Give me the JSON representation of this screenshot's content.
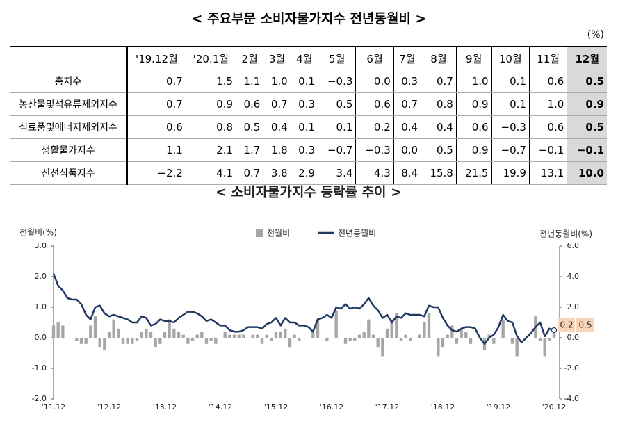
{
  "title": "< 주요부문 소비자물가지수 전년동월비 >",
  "unit": "(%)",
  "table": {
    "header": [
      "'19.12월",
      "'20.1월",
      "2월",
      "3월",
      "4월",
      "5월",
      "6월",
      "7월",
      "8월",
      "9월",
      "10월",
      "11월",
      "12월"
    ],
    "rows": [
      {
        "label": "총지수",
        "values": [
          "0.7",
          "1.5",
          "1.1",
          "1.0",
          "0.1",
          "−0.3",
          "0.0",
          "0.3",
          "0.7",
          "1.0",
          "0.1",
          "0.6",
          "0.5"
        ]
      },
      {
        "label": "농산물및석유류제외지수",
        "values": [
          "0.7",
          "0.9",
          "0.6",
          "0.7",
          "0.3",
          "0.5",
          "0.6",
          "0.7",
          "0.8",
          "0.9",
          "0.1",
          "1.0",
          "0.9"
        ]
      },
      {
        "label": "식료품및에너지제외지수",
        "values": [
          "0.6",
          "0.8",
          "0.5",
          "0.4",
          "0.1",
          "0.1",
          "0.2",
          "0.4",
          "0.4",
          "0.6",
          "−0.3",
          "0.6",
          "0.5"
        ]
      },
      {
        "label": "생활물가지수",
        "values": [
          "1.1",
          "2.1",
          "1.7",
          "1.8",
          "0.3",
          "−0.7",
          "−0.3",
          "0.0",
          "0.5",
          "0.9",
          "−0.7",
          "−0.1",
          "−0.1"
        ]
      },
      {
        "label": "신선식품지수",
        "values": [
          "−2.2",
          "4.1",
          "0.7",
          "3.8",
          "2.9",
          "3.4",
          "4.3",
          "8.4",
          "15.8",
          "21.5",
          "19.9",
          "13.1",
          "10.0"
        ]
      }
    ]
  },
  "chart_data": {
    "type": "bar-line",
    "title": "< 소비자물가지수 등락률 추이 >",
    "y_label": "전월비(%)",
    "y2_label": "전년동월비(%)",
    "categories": [
      "'11.12",
      null,
      null,
      null,
      null,
      null,
      null,
      null,
      null,
      null,
      null,
      null,
      "'12.12",
      null,
      null,
      null,
      null,
      null,
      null,
      null,
      null,
      null,
      null,
      null,
      "'13.12",
      null,
      null,
      null,
      null,
      null,
      null,
      null,
      null,
      null,
      null,
      null,
      "'14.12",
      null,
      null,
      null,
      null,
      null,
      null,
      null,
      null,
      null,
      null,
      null,
      "'15.12",
      null,
      null,
      null,
      null,
      null,
      null,
      null,
      null,
      null,
      null,
      null,
      "'16.12",
      null,
      null,
      null,
      null,
      null,
      null,
      null,
      null,
      null,
      null,
      null,
      "'17.12",
      null,
      null,
      null,
      null,
      null,
      null,
      null,
      null,
      null,
      null,
      null,
      "'18.12",
      null,
      null,
      null,
      null,
      null,
      null,
      null,
      null,
      null,
      null,
      null,
      "'19.12",
      null,
      null,
      null,
      null,
      null,
      null,
      null,
      null,
      null,
      null,
      null,
      "'20.12"
    ],
    "series": [
      {
        "name": "전월비",
        "color": "#a6a6a6",
        "kind": "bar",
        "values": [
          0.4,
          0.5,
          0.4,
          0.0,
          0.0,
          -0.1,
          -0.2,
          -0.2,
          0.4,
          0.7,
          -0.3,
          -0.4,
          0.2,
          0.6,
          0.3,
          -0.2,
          -0.2,
          -0.2,
          -0.1,
          0.2,
          0.3,
          0.2,
          -0.3,
          -0.2,
          0.2,
          0.6,
          0.3,
          0.2,
          0.1,
          -0.2,
          -0.1,
          0.1,
          0.2,
          -0.2,
          -0.1,
          -0.2,
          0.0,
          0.2,
          0.1,
          0.1,
          0.1,
          0.1,
          0.0,
          0.1,
          0.1,
          -0.2,
          0.1,
          -0.1,
          0.2,
          0.2,
          0.3,
          -0.3,
          0.1,
          -0.1,
          0.0,
          0.0,
          0.2,
          0.6,
          0.0,
          -0.1,
          0.0,
          0.9,
          0.0,
          -0.2,
          -0.1,
          -0.1,
          0.1,
          0.2,
          0.6,
          0.1,
          -0.3,
          -0.6,
          0.3,
          0.6,
          0.8,
          -0.1,
          0.1,
          -0.1,
          0.0,
          0.1,
          0.5,
          0.8,
          0.0,
          -0.6,
          -0.3,
          0.1,
          0.4,
          -0.2,
          0.3,
          0.2,
          -0.2,
          0.0,
          0.0,
          -0.4,
          0.1,
          -0.2,
          0.0,
          0.6,
          0.0,
          -0.2,
          -0.6,
          0.0,
          0.0,
          0.0,
          0.7,
          -0.1,
          -0.6,
          -0.1,
          0.2
        ]
      },
      {
        "name": "전년동월비",
        "color": "#1f3864",
        "kind": "line",
        "axis": "y2",
        "values": [
          4.2,
          3.4,
          3.1,
          2.6,
          2.5,
          2.5,
          2.2,
          1.5,
          1.2,
          2.0,
          2.1,
          1.6,
          1.4,
          1.5,
          1.4,
          1.3,
          1.2,
          1.0,
          1.0,
          1.4,
          1.3,
          0.8,
          0.9,
          1.2,
          1.1,
          1.1,
          1.0,
          1.3,
          1.5,
          1.7,
          1.7,
          1.6,
          1.4,
          1.1,
          1.2,
          1.0,
          0.8,
          0.8,
          0.5,
          0.4,
          0.4,
          0.5,
          0.7,
          0.7,
          0.7,
          0.6,
          0.9,
          1.0,
          1.3,
          0.8,
          1.3,
          1.0,
          1.0,
          0.8,
          0.8,
          0.7,
          0.4,
          1.2,
          1.3,
          1.5,
          1.3,
          2.0,
          1.9,
          2.2,
          1.9,
          2.0,
          1.9,
          2.2,
          2.6,
          2.1,
          1.8,
          1.3,
          1.5,
          1.0,
          1.4,
          1.3,
          1.6,
          1.5,
          1.5,
          1.5,
          1.4,
          2.1,
          2.0,
          2.0,
          1.3,
          0.8,
          0.5,
          0.4,
          0.6,
          0.7,
          0.7,
          0.6,
          0.0,
          -0.4,
          0.0,
          0.2,
          0.7,
          1.5,
          1.1,
          1.0,
          0.1,
          -0.3,
          0.0,
          0.3,
          0.7,
          1.0,
          0.1,
          0.6,
          0.5
        ]
      }
    ],
    "ylim": [
      -2,
      3
    ],
    "yticks": [
      {
        "value": -2,
        "label": "-2.0"
      },
      {
        "value": -1,
        "label": "-1.0"
      },
      {
        "value": 0,
        "label": "0.0"
      },
      {
        "value": 1,
        "label": "1.0"
      },
      {
        "value": 2,
        "label": "2.0"
      },
      {
        "value": 3,
        "label": "3.0"
      }
    ],
    "y2lim": [
      -4,
      6
    ],
    "y2ticks": [
      {
        "value": -4,
        "label": "-4.0"
      },
      {
        "value": -2,
        "label": "-2.0"
      },
      {
        "value": 0,
        "label": "0.0"
      },
      {
        "value": 2,
        "label": "2.0"
      },
      {
        "value": 4,
        "label": "4.0"
      },
      {
        "value": 6,
        "label": "6.0"
      }
    ],
    "legend": "top",
    "annotations": [
      "0.2",
      "0.5"
    ]
  }
}
